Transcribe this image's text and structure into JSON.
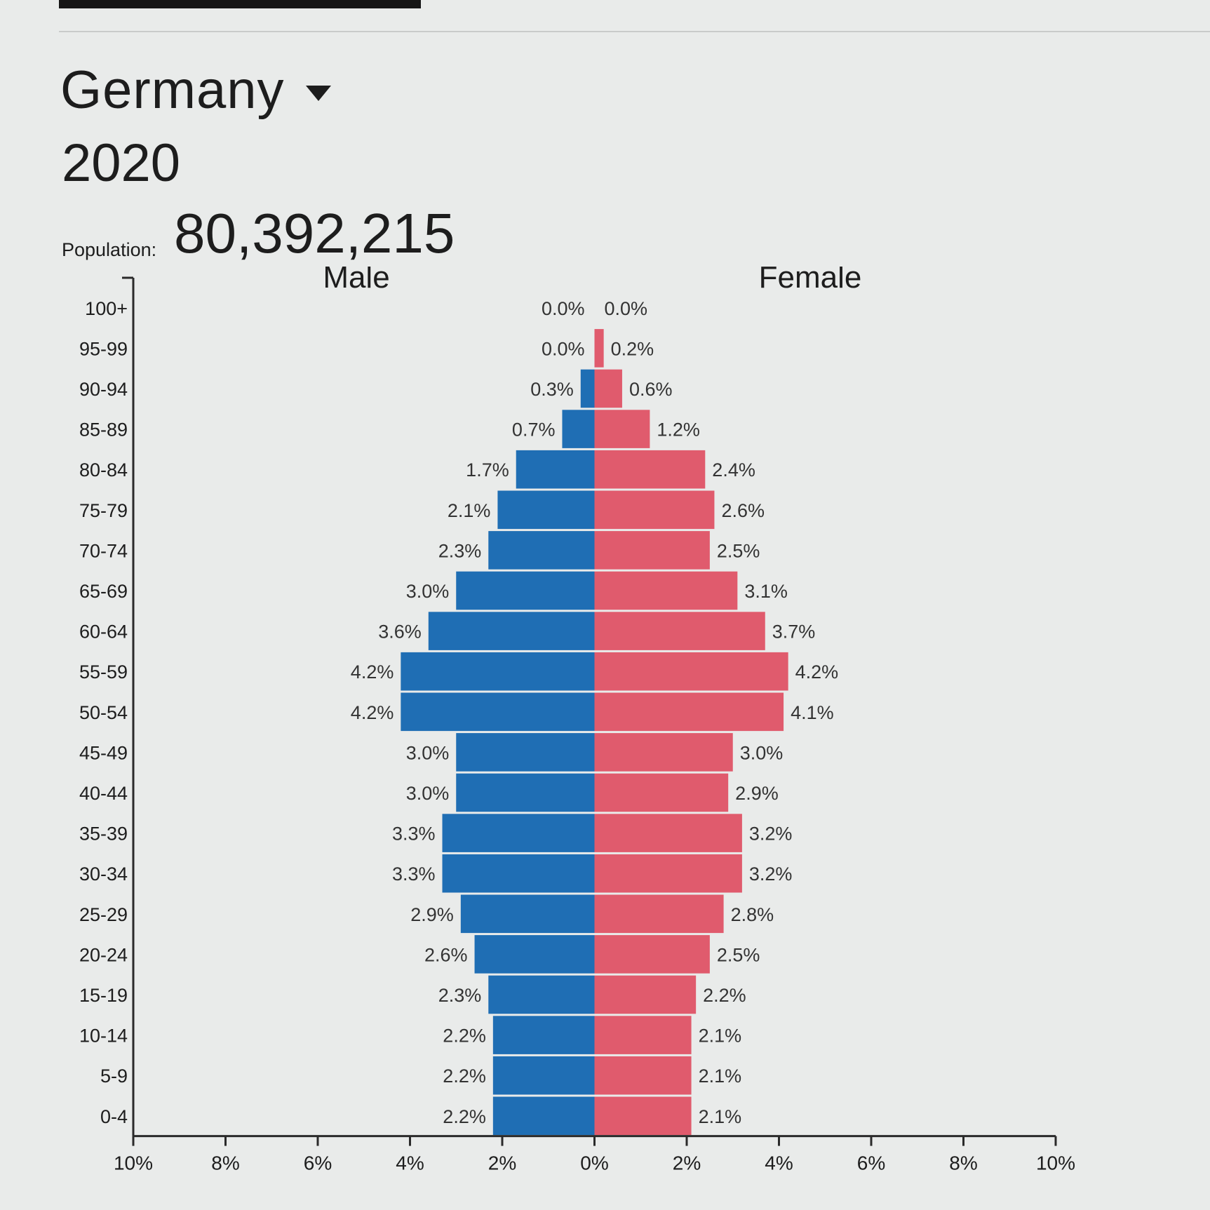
{
  "header": {
    "country": "Germany",
    "year": "2020",
    "population_label": "Population:",
    "population_value": "80,392,215"
  },
  "colors": {
    "male": "#1f6eb4",
    "female": "#e05b6d",
    "axis": "#2a2a2a",
    "text": "#1d1d1d"
  },
  "icons": {
    "country_dropdown": "caret-down-icon"
  },
  "chart_data": {
    "type": "bar",
    "orientation": "horizontal",
    "categories": [
      "100+",
      "95-99",
      "90-94",
      "85-89",
      "80-84",
      "75-79",
      "70-74",
      "65-69",
      "60-64",
      "55-59",
      "50-54",
      "45-49",
      "40-44",
      "35-39",
      "30-34",
      "25-29",
      "20-24",
      "15-19",
      "10-14",
      "5-9",
      "0-4"
    ],
    "series": [
      {
        "name": "Male",
        "values": [
          0.0,
          0.0,
          0.3,
          0.7,
          1.7,
          2.1,
          2.3,
          3.0,
          3.6,
          4.2,
          4.2,
          3.0,
          3.0,
          3.3,
          3.3,
          2.9,
          2.6,
          2.3,
          2.2,
          2.2,
          2.2
        ],
        "labels": [
          "0.0%",
          "0.0%",
          "0.3%",
          "0.7%",
          "1.7%",
          "2.1%",
          "2.3%",
          "3.0%",
          "3.6%",
          "4.2%",
          "4.2%",
          "3.0%",
          "3.0%",
          "3.3%",
          "3.3%",
          "2.9%",
          "2.6%",
          "2.3%",
          "2.2%",
          "2.2%",
          "2.2%"
        ]
      },
      {
        "name": "Female",
        "values": [
          0.0,
          0.2,
          0.6,
          1.2,
          2.4,
          2.6,
          2.5,
          3.1,
          3.7,
          4.2,
          4.1,
          3.0,
          2.9,
          3.2,
          3.2,
          2.8,
          2.5,
          2.2,
          2.1,
          2.1,
          2.1
        ],
        "labels": [
          "0.0%",
          "0.2%",
          "0.6%",
          "1.2%",
          "2.4%",
          "2.6%",
          "2.5%",
          "3.1%",
          "3.7%",
          "4.2%",
          "4.1%",
          "3.0%",
          "2.9%",
          "3.2%",
          "3.2%",
          "2.8%",
          "2.5%",
          "2.2%",
          "2.1%",
          "2.1%",
          "2.1%"
        ]
      }
    ],
    "xlim": [
      -10,
      10
    ],
    "xticks": [
      -10,
      -8,
      -6,
      -4,
      -2,
      0,
      2,
      4,
      6,
      8,
      10
    ],
    "xtick_labels": [
      "10%",
      "8%",
      "6%",
      "4%",
      "2%",
      "0%",
      "2%",
      "4%",
      "6%",
      "8%",
      "10%"
    ],
    "grid": false,
    "legend": "side labels above bars (Male left, Female right)"
  }
}
